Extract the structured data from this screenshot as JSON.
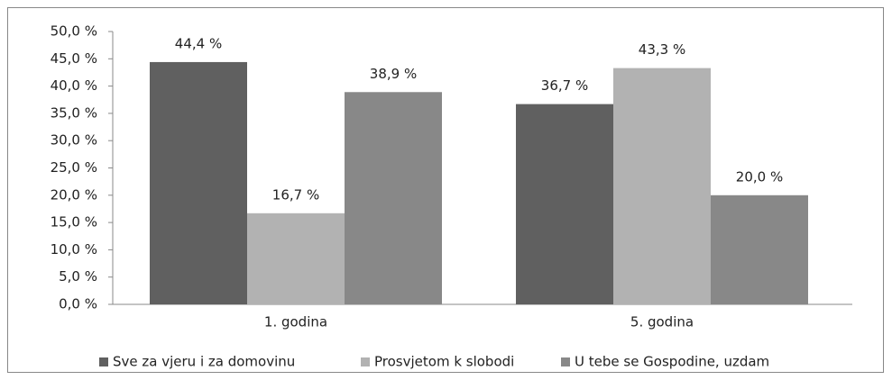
{
  "chart_data": {
    "type": "bar",
    "categories": [
      "1. godina",
      "5. godina"
    ],
    "series": [
      {
        "name": "Sve za vjeru i za domovinu",
        "color": "#606060",
        "values": [
          44.4,
          36.7
        ],
        "value_labels": [
          "44,4 %",
          "36,7 %"
        ]
      },
      {
        "name": "Prosvjetom k slobodi",
        "color": "#b2b2b2",
        "values": [
          16.7,
          43.3
        ],
        "value_labels": [
          "16,7 %",
          "43,3 %"
        ]
      },
      {
        "name": "U tebe se Gospodine, uzdam",
        "color": "#888888",
        "values": [
          38.9,
          20.0
        ],
        "value_labels": [
          "38,9 %",
          "20,0 %"
        ]
      }
    ],
    "ylim": [
      0,
      50
    ],
    "yticks": [
      {
        "value": 0,
        "label": "0,0 %"
      },
      {
        "value": 5,
        "label": "5,0 %"
      },
      {
        "value": 10,
        "label": "10,0 %"
      },
      {
        "value": 15,
        "label": "15,0 %"
      },
      {
        "value": 20,
        "label": "20,0 %"
      },
      {
        "value": 25,
        "label": "25,0 %"
      },
      {
        "value": 30,
        "label": "30,0 %"
      },
      {
        "value": 35,
        "label": "35,0 %"
      },
      {
        "value": 40,
        "label": "40,0 %"
      },
      {
        "value": 45,
        "label": "45,0 %"
      },
      {
        "value": 50,
        "label": "50,0 %"
      }
    ],
    "legend": "bottom"
  }
}
